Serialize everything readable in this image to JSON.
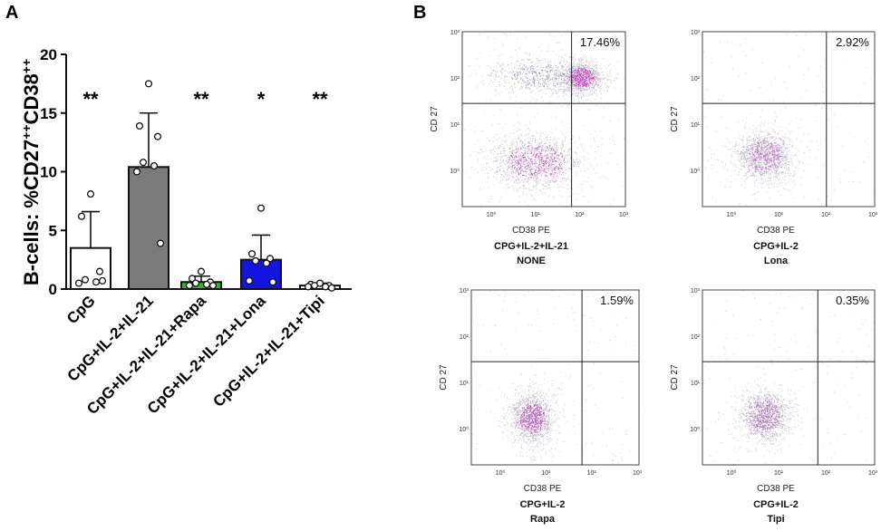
{
  "panels": {
    "a_label": "A",
    "b_label": "B"
  },
  "chart_data": {
    "type": "bar",
    "title": "",
    "xlabel": "",
    "ylabel": "B-cells: %CD27++CD38++",
    "ylabel_main": "B-cells: %CD27",
    "ylabel_sup1": "++",
    "ylabel_mid": "CD38",
    "ylabel_sup2": "++",
    "ylim": [
      0,
      20
    ],
    "yticks": [
      "0",
      "5",
      "10",
      "15",
      "20"
    ],
    "categories": [
      "CpG",
      "CpG+IL-2+IL-21",
      "CpG+IL-2+IL-21+Rapa",
      "CpG+IL-2+IL-21+Lona",
      "CpG+IL-2+IL-21+Tipi"
    ],
    "values": [
      3.5,
      10.4,
      0.6,
      2.5,
      0.3
    ],
    "errors": [
      3.1,
      4.6,
      0.5,
      2.1,
      0.2
    ],
    "colors": [
      "#ffffff",
      "#7a7a7a",
      "#2db52d",
      "#1414e0",
      "#ffffff"
    ],
    "points": [
      [
        8.1,
        6.2,
        1.5,
        0.8,
        0.6,
        0.5,
        0.7
      ],
      [
        17.5,
        13.9,
        13.0,
        10.8,
        10.5,
        10.0,
        3.9
      ],
      [
        1.5,
        0.9,
        0.6,
        0.5,
        0.4,
        0.3,
        0.3
      ],
      [
        6.9,
        3.0,
        2.6,
        2.4,
        2.2,
        0.7,
        0.6
      ],
      [
        0.5,
        0.4,
        0.3,
        0.3,
        0.2,
        0.2,
        0.1
      ]
    ],
    "significance": [
      "**",
      "",
      "**",
      "*",
      "**"
    ]
  },
  "flow_plots": [
    {
      "percent": "17.46%",
      "line1": "CPG+IL-2+IL-21",
      "line2": "NONE",
      "xaxis": "CD38 PE",
      "yaxis": "CD 27"
    },
    {
      "percent": "2.92%",
      "line1": "CPG+IL-2",
      "line2": "Lona",
      "xaxis": "CD38 PE",
      "yaxis": "CD 27"
    },
    {
      "percent": "1.59%",
      "line1": "CPG+IL-2",
      "line2": "Rapa",
      "xaxis": "CD38 PE",
      "yaxis": "CD 27"
    },
    {
      "percent": "0.35%",
      "line1": "CPG+IL-2",
      "line2": "Tipi",
      "xaxis": "CD38 PE",
      "yaxis": "CD 27"
    }
  ],
  "flow_ticks": {
    "x": [
      "10⁰",
      "10¹",
      "10²",
      "10³"
    ],
    "y": [
      "10³",
      "10²",
      "10¹",
      "10⁰"
    ]
  }
}
